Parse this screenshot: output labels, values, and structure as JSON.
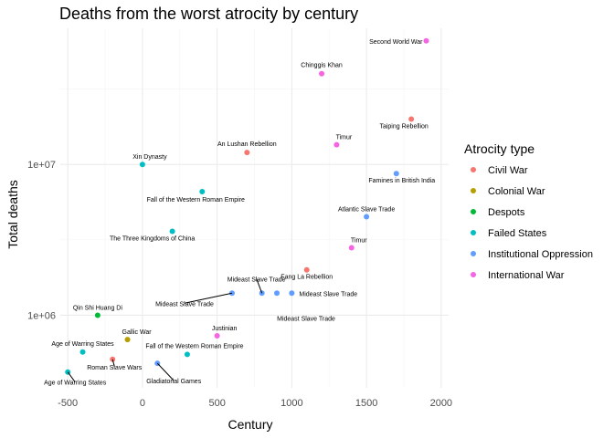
{
  "chart_data": {
    "type": "scatter",
    "title": "Deaths from the worst atrocity by century",
    "xlabel": "Century",
    "ylabel": "Total deaths",
    "xlim": [
      -550,
      2050
    ],
    "ylim": [
      330000,
      80000000
    ],
    "y_scale": "log10",
    "x_ticks": [
      -500,
      0,
      500,
      1000,
      1500,
      2000
    ],
    "x_tick_labels": [
      "-500",
      "0",
      "500",
      "1000",
      "1500",
      "2000"
    ],
    "y_ticks": [
      1000000,
      10000000
    ],
    "y_tick_labels": [
      "1e+06",
      "1e+07"
    ],
    "grid": true,
    "legend": {
      "title": "Atrocity type",
      "position": "right",
      "entries": [
        {
          "name": "Civil War",
          "color": "#F8766D"
        },
        {
          "name": "Colonial War",
          "color": "#B79F00"
        },
        {
          "name": "Despots",
          "color": "#00BA38"
        },
        {
          "name": "Failed States",
          "color": "#00BFC4"
        },
        {
          "name": "Institutional Oppression",
          "color": "#619CFF"
        },
        {
          "name": "International War",
          "color": "#F564E3"
        }
      ]
    },
    "points": [
      {
        "label": "Second World War",
        "x": 1900,
        "y": 66000000,
        "type": "International War"
      },
      {
        "label": "Chinggis Khan",
        "x": 1200,
        "y": 40000000,
        "type": "International War"
      },
      {
        "label": "Taiping Rebellion",
        "x": 1800,
        "y": 20000000,
        "type": "Civil War"
      },
      {
        "label": "Timur",
        "x": 1300,
        "y": 13500000,
        "type": "International War"
      },
      {
        "label": "An Lushan Rebellion",
        "x": 700,
        "y": 12000000,
        "type": "Civil War"
      },
      {
        "label": "Xin Dynasty",
        "x": 0,
        "y": 10000000,
        "type": "Failed States"
      },
      {
        "label": "Famines in British India",
        "x": 1700,
        "y": 8700000,
        "type": "Institutional Oppression"
      },
      {
        "label": "Fall of the Western Roman Empire",
        "x": 400,
        "y": 6600000,
        "type": "Failed States"
      },
      {
        "label": "Atlantic Slave Trade",
        "x": 1500,
        "y": 4500000,
        "type": "Institutional Oppression"
      },
      {
        "label": "The Three Kingdoms of China",
        "x": 200,
        "y": 3600000,
        "type": "Failed States"
      },
      {
        "label": "Timur",
        "x": 1400,
        "y": 2800000,
        "type": "International War"
      },
      {
        "label": "Fang La Rebellion",
        "x": 1100,
        "y": 2000000,
        "type": "Civil War"
      },
      {
        "label": "Mideast Slave Trade",
        "x": 600,
        "y": 1400000,
        "type": "Institutional Oppression"
      },
      {
        "label": "Mideast Slave Trade",
        "x": 800,
        "y": 1400000,
        "type": "Institutional Oppression"
      },
      {
        "label": "Mideast Slave Trade",
        "x": 900,
        "y": 1400000,
        "type": "Institutional Oppression"
      },
      {
        "label": "Mideast Slave Trade",
        "x": 1000,
        "y": 1400000,
        "type": "Institutional Oppression"
      },
      {
        "label": "Qin Shi Huang Di",
        "x": -300,
        "y": 1000000,
        "type": "Despots"
      },
      {
        "label": "Justinian",
        "x": 500,
        "y": 730000,
        "type": "International War"
      },
      {
        "label": "Gallic War",
        "x": -100,
        "y": 690000,
        "type": "Colonial War"
      },
      {
        "label": "Age of Warring States",
        "x": -400,
        "y": 570000,
        "type": "Failed States"
      },
      {
        "label": "Fall of the Western Roman Empire",
        "x": 300,
        "y": 550000,
        "type": "Failed States"
      },
      {
        "label": "Roman Slave Wars",
        "x": -200,
        "y": 510000,
        "type": "Civil War"
      },
      {
        "label": "Gladiatorial Games",
        "x": 100,
        "y": 480000,
        "type": "Institutional Oppression"
      },
      {
        "label": "Age of Warring States",
        "x": -500,
        "y": 420000,
        "type": "Failed States"
      }
    ]
  }
}
